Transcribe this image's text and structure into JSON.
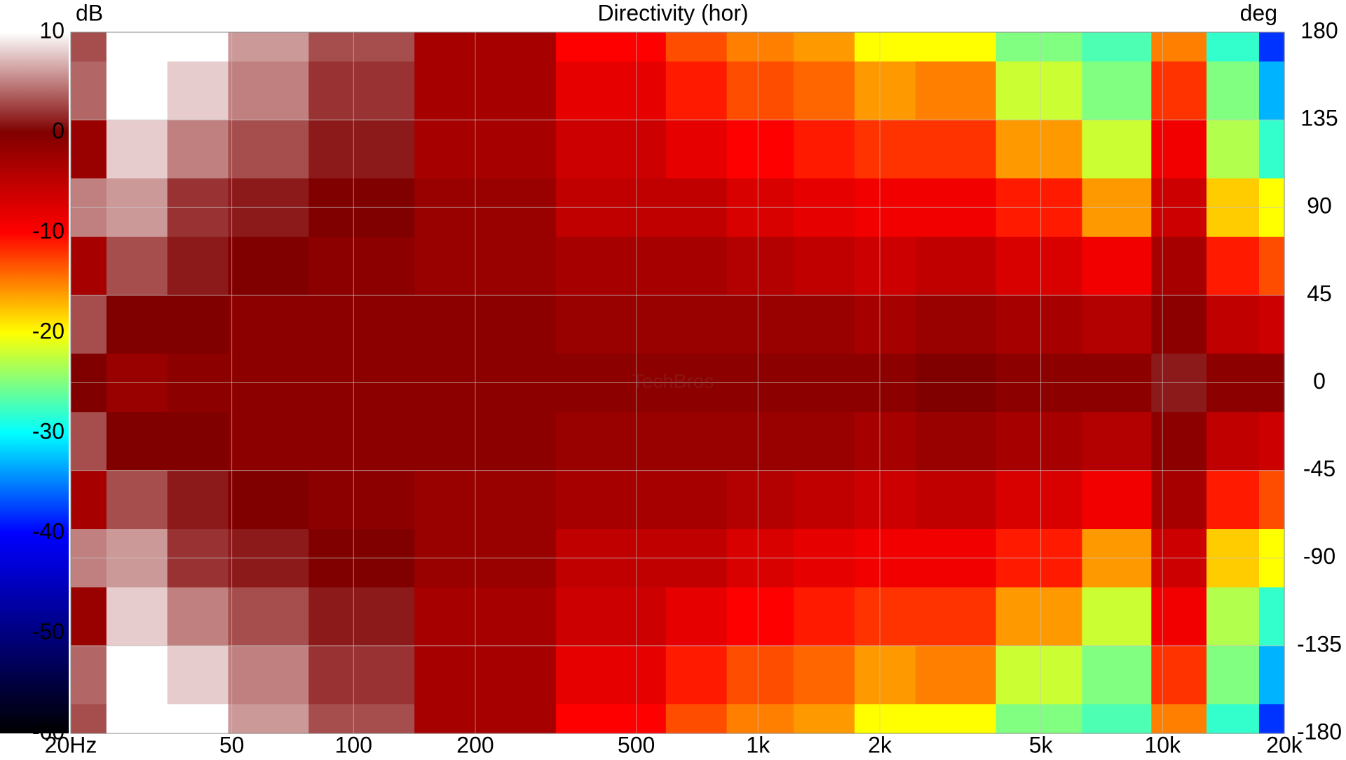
{
  "chart_data": {
    "type": "heatmap",
    "title": "Directivity (hor)",
    "colorbar_label": "dB",
    "y_label": "deg",
    "watermark": "TechBros",
    "x": [
      20,
      30,
      40,
      60,
      100,
      200,
      500,
      700,
      1000,
      1500,
      2000,
      3000,
      5000,
      8000,
      11000,
      15000,
      20000
    ],
    "y": [
      180,
      150,
      120,
      90,
      60,
      30,
      0,
      -30,
      -60,
      -90,
      -120,
      -150,
      -180
    ],
    "z": [
      [
        3,
        10,
        10,
        6,
        3,
        -3,
        -10,
        -13,
        -15,
        -16,
        -20,
        -20,
        -25,
        -27,
        -15,
        -28,
        -38
      ],
      [
        4,
        10,
        8,
        5,
        2,
        -3,
        -8,
        -11,
        -13,
        -14,
        -16,
        -15,
        -22,
        -25,
        -12,
        -25,
        -33
      ],
      [
        -2,
        8,
        5,
        3,
        1,
        -3,
        -6,
        -8,
        -10,
        -11,
        -12,
        -12,
        -16,
        -22,
        -9,
        -23,
        -28
      ],
      [
        5,
        6,
        2,
        1,
        0,
        -2,
        -5,
        -5,
        -7,
        -8,
        -9,
        -9,
        -11,
        -16,
        -6,
        -18,
        -20
      ],
      [
        -3,
        3,
        1,
        0,
        -1,
        -2,
        -3,
        -3,
        -4,
        -5,
        -6,
        -5,
        -7,
        -9,
        -3,
        -11,
        -13
      ],
      [
        3,
        0,
        0,
        -1,
        -1,
        -1,
        -2,
        -2,
        -2,
        -2,
        -3,
        -2,
        -3,
        -4,
        -1,
        -5,
        -6
      ],
      [
        0,
        -2,
        -1,
        -1,
        -1,
        -1,
        -1,
        -1,
        -1,
        -1,
        -1,
        0,
        -1,
        -1,
        1,
        -1,
        -1
      ],
      [
        3,
        0,
        0,
        -1,
        -1,
        -1,
        -2,
        -2,
        -2,
        -2,
        -3,
        -2,
        -3,
        -4,
        -1,
        -5,
        -6
      ],
      [
        -3,
        3,
        1,
        0,
        -1,
        -2,
        -3,
        -3,
        -4,
        -5,
        -6,
        -5,
        -7,
        -9,
        -3,
        -11,
        -13
      ],
      [
        5,
        6,
        2,
        1,
        0,
        -2,
        -5,
        -5,
        -7,
        -8,
        -9,
        -9,
        -11,
        -16,
        -6,
        -18,
        -20
      ],
      [
        -2,
        8,
        5,
        3,
        1,
        -3,
        -6,
        -8,
        -10,
        -11,
        -12,
        -12,
        -16,
        -22,
        -9,
        -23,
        -28
      ],
      [
        4,
        10,
        8,
        5,
        2,
        -3,
        -8,
        -11,
        -13,
        -14,
        -16,
        -15,
        -22,
        -25,
        -12,
        -25,
        -33
      ],
      [
        3,
        10,
        10,
        6,
        3,
        -3,
        -10,
        -13,
        -15,
        -16,
        -20,
        -20,
        -25,
        -27,
        -15,
        -28,
        -38
      ]
    ],
    "xlim": [
      20,
      20000
    ],
    "x_log": true,
    "xticks": [
      {
        "value": 20,
        "label": "20Hz"
      },
      50,
      100,
      200,
      500,
      {
        "value": 1000,
        "label": "1k"
      },
      {
        "value": 2000,
        "label": "2k"
      },
      {
        "value": 5000,
        "label": "5k"
      },
      {
        "value": 10000,
        "label": "10k"
      },
      {
        "value": 20000,
        "label": "20k"
      }
    ],
    "ylim": [
      -180,
      180
    ],
    "yticks": [
      180,
      135,
      90,
      45,
      0,
      -45,
      -90,
      -135,
      -180
    ],
    "zlim": [
      -60,
      10
    ],
    "zticks": [
      10,
      0,
      -10,
      -20,
      -30,
      -40,
      -50,
      -60
    ],
    "colorscale": [
      [
        10,
        "#ffffff"
      ],
      [
        0,
        "#800000"
      ],
      [
        -10,
        "#ff0000"
      ],
      [
        -15,
        "#ff8000"
      ],
      [
        -20,
        "#ffff00"
      ],
      [
        -25,
        "#80ff80"
      ],
      [
        -30,
        "#00ffff"
      ],
      [
        -40,
        "#0000ff"
      ],
      [
        -50,
        "#000080"
      ],
      [
        -60,
        "#000000"
      ]
    ],
    "grid": true
  }
}
